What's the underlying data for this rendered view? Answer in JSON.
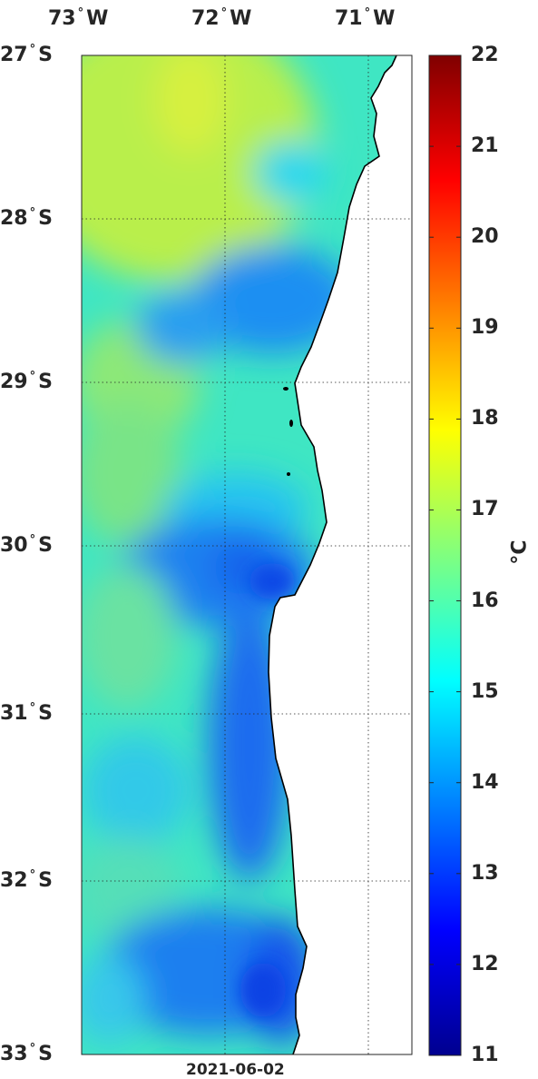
{
  "map": {
    "lon_ticks": [
      {
        "deg": "73",
        "hemi": "W"
      },
      {
        "deg": "72",
        "hemi": "W"
      },
      {
        "deg": "71",
        "hemi": "W"
      }
    ],
    "lat_ticks": [
      {
        "deg": "27",
        "hemi": "S"
      },
      {
        "deg": "28",
        "hemi": "S"
      },
      {
        "deg": "29",
        "hemi": "S"
      },
      {
        "deg": "30",
        "hemi": "S"
      },
      {
        "deg": "31",
        "hemi": "S"
      },
      {
        "deg": "32",
        "hemi": "S"
      },
      {
        "deg": "33",
        "hemi": "S"
      }
    ],
    "date": "2021-06-02",
    "gridlines": "dotted",
    "land_color": "#ffffff",
    "coast_color": "#000000"
  },
  "colorbar": {
    "min": 11,
    "max": 22,
    "ticks": [
      "11",
      "12",
      "13",
      "14",
      "15",
      "16",
      "17",
      "18",
      "19",
      "20",
      "21",
      "22"
    ],
    "unit": "°C",
    "colormap": "jet"
  },
  "icons": {
    "degree_symbol": "°"
  }
}
